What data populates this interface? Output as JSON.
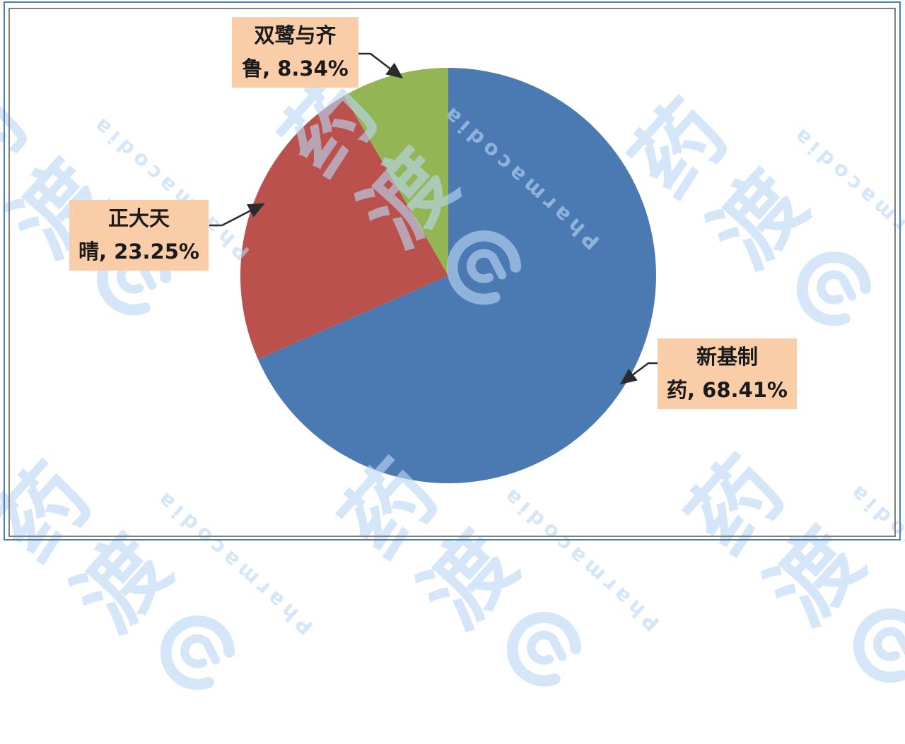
{
  "chart_data": {
    "type": "pie",
    "title": "",
    "legend": "none",
    "direction": "clockwise",
    "start_angle_deg": 0,
    "slices": [
      {
        "name": "新基制药",
        "value": 68.41,
        "color": "#4b79b2",
        "label_lines": [
          "新基制",
          "药, 68.41%"
        ]
      },
      {
        "name": "正大天晴",
        "value": 23.25,
        "color": "#ba514c",
        "label_lines": [
          "正大天",
          "晴, 23.25%"
        ]
      },
      {
        "name": "双鹭与齐鲁",
        "value": 8.34,
        "color": "#93b554",
        "label_lines": [
          "双鹭与齐",
          "鲁, 8.34%"
        ]
      }
    ],
    "label_style": {
      "background": "#facda9",
      "text_color": "#1a1a1a"
    }
  },
  "watermark": {
    "char_top": "药",
    "char_bottom": "渡",
    "brand": "Pharmacodia",
    "color": "#bad6f2"
  },
  "frame": {
    "outer_border_color": "#4c7fba",
    "inner_border_color": "#7f7f7f",
    "background": "#ffffff"
  }
}
